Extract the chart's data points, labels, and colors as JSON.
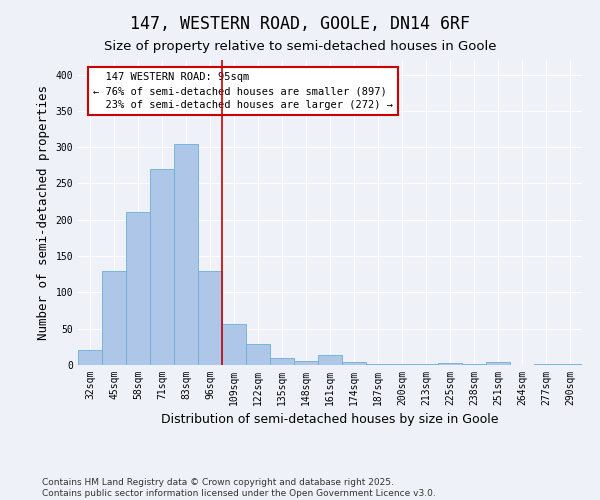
{
  "title": "147, WESTERN ROAD, GOOLE, DN14 6RF",
  "subtitle": "Size of property relative to semi-detached houses in Goole",
  "xlabel": "Distribution of semi-detached houses by size in Goole",
  "ylabel": "Number of semi-detached properties",
  "bar_labels": [
    "32sqm",
    "45sqm",
    "58sqm",
    "71sqm",
    "83sqm",
    "96sqm",
    "109sqm",
    "122sqm",
    "135sqm",
    "148sqm",
    "161sqm",
    "174sqm",
    "187sqm",
    "200sqm",
    "213sqm",
    "225sqm",
    "238sqm",
    "251sqm",
    "264sqm",
    "277sqm",
    "290sqm"
  ],
  "bar_values": [
    20,
    130,
    210,
    270,
    305,
    130,
    57,
    29,
    10,
    6,
    14,
    4,
    2,
    1,
    1,
    3,
    1,
    4,
    0,
    1,
    2
  ],
  "bar_color": "#aec6e8",
  "bar_edgecolor": "#6aaed6",
  "property_line_x": 5.5,
  "property_sqm": 95,
  "pct_smaller": 76,
  "count_smaller": 897,
  "pct_larger": 23,
  "count_larger": 272,
  "annotation_box_color": "#cc0000",
  "line_color": "#cc0000",
  "ylim": [
    0,
    420
  ],
  "yticks": [
    0,
    50,
    100,
    150,
    200,
    250,
    300,
    350,
    400
  ],
  "footer": "Contains HM Land Registry data © Crown copyright and database right 2025.\nContains public sector information licensed under the Open Government Licence v3.0.",
  "bg_color": "#eef1f7",
  "plot_bg_color": "#eef1f7",
  "title_fontsize": 12,
  "subtitle_fontsize": 9.5,
  "axis_label_fontsize": 9,
  "tick_fontsize": 7,
  "footer_fontsize": 6.5
}
